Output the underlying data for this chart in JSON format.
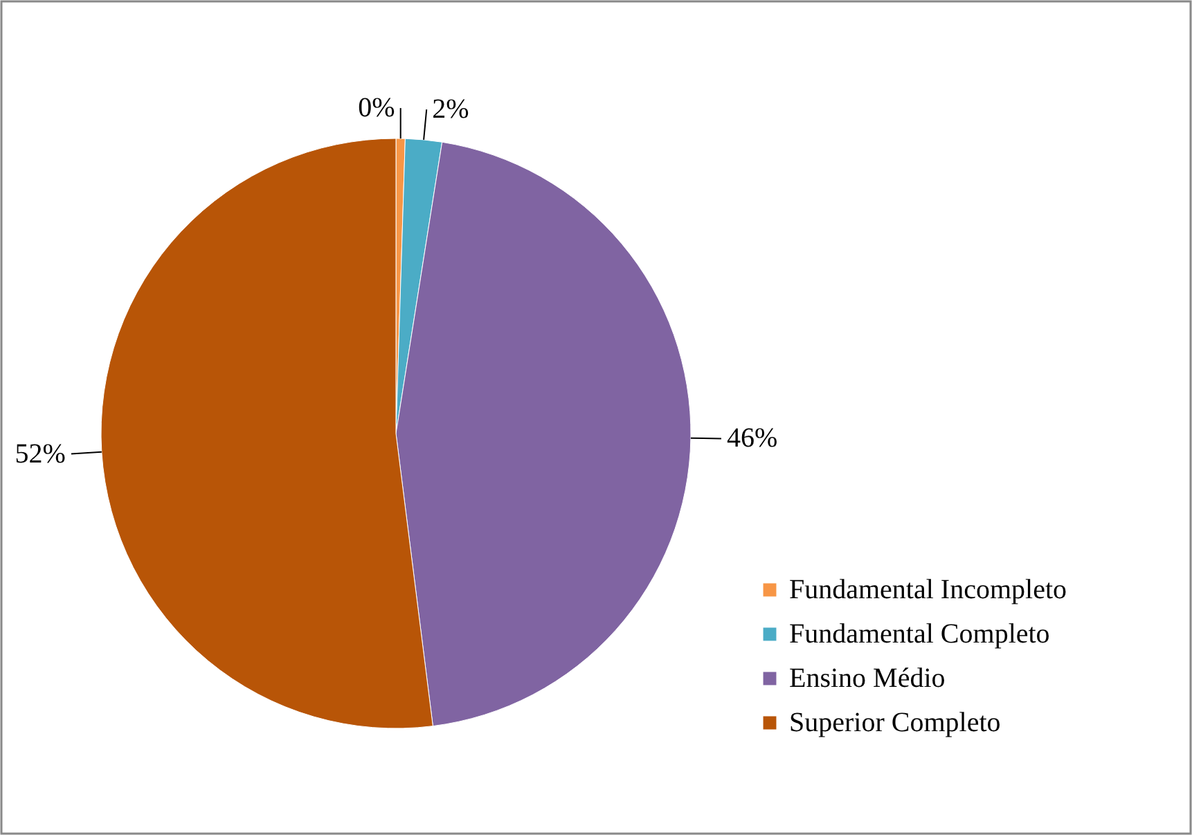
{
  "chart_data": {
    "type": "pie",
    "categories": [
      "Fundamental Incompleto",
      "Fundamental Completo",
      "Ensino Médio",
      "Superior Completo"
    ],
    "values": [
      0.5,
      2,
      45.5,
      52
    ],
    "value_labels": [
      "0%",
      "2%",
      "46%",
      "52%"
    ],
    "colors": [
      "#f79646",
      "#4bacc6",
      "#8064a2",
      "#b85507"
    ],
    "legend": "bottom right"
  }
}
